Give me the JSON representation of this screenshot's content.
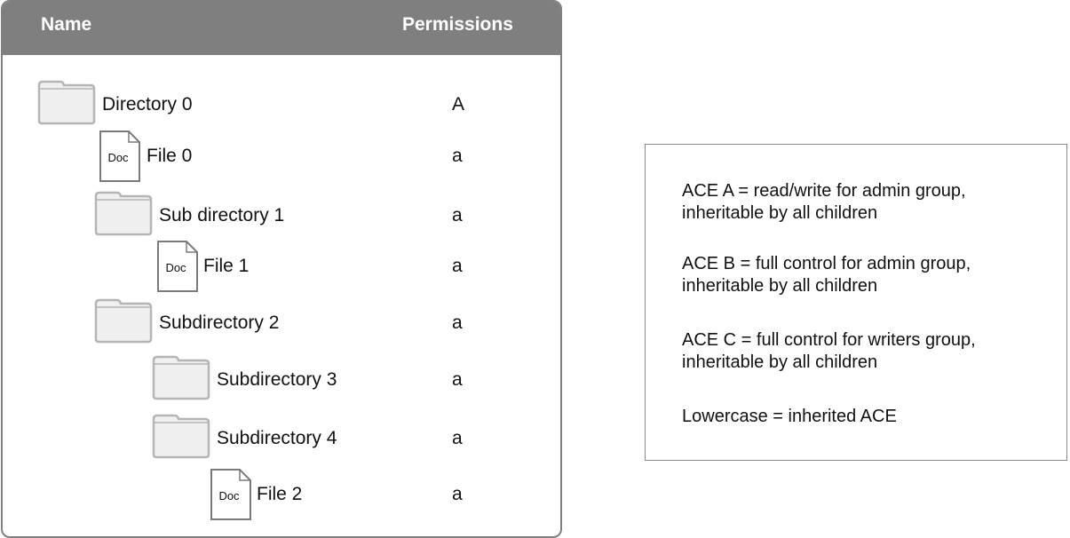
{
  "table": {
    "headers": {
      "name": "Name",
      "permissions": "Permissions"
    },
    "rows": [
      {
        "icon": "folder-icon",
        "name": "Directory 0",
        "permission": "A"
      },
      {
        "icon": "doc-icon",
        "name": "File 0",
        "permission": "a"
      },
      {
        "icon": "folder-icon",
        "name": "Sub directory 1",
        "permission": "a"
      },
      {
        "icon": "doc-icon",
        "name": "File 1",
        "permission": "a"
      },
      {
        "icon": "folder-icon",
        "name": "Subdirectory 2",
        "permission": "a"
      },
      {
        "icon": "folder-icon",
        "name": "Subdirectory 3",
        "permission": "a"
      },
      {
        "icon": "folder-icon",
        "name": "Subdirectory 4",
        "permission": "a"
      },
      {
        "icon": "doc-icon",
        "name": "File 2",
        "permission": "a"
      }
    ],
    "doc_icon_label": "Doc"
  },
  "legend": [
    {
      "line1": "ACE A = read/write for admin group,",
      "line2": "inheritable by all children"
    },
    {
      "line1": "ACE B = full control for admin group,",
      "line2": "inheritable by all children"
    },
    {
      "line1": "ACE C = full control for writers group,",
      "line2": "inheritable by all children"
    },
    {
      "line1": "Lowercase = inherited ACE",
      "line2": ""
    }
  ],
  "colors": {
    "header": "#7f7f7f",
    "folder_fill": "#f0f0f0",
    "folder_stroke": "#b5b5b5",
    "doc_stroke": "#7a7a7a"
  }
}
